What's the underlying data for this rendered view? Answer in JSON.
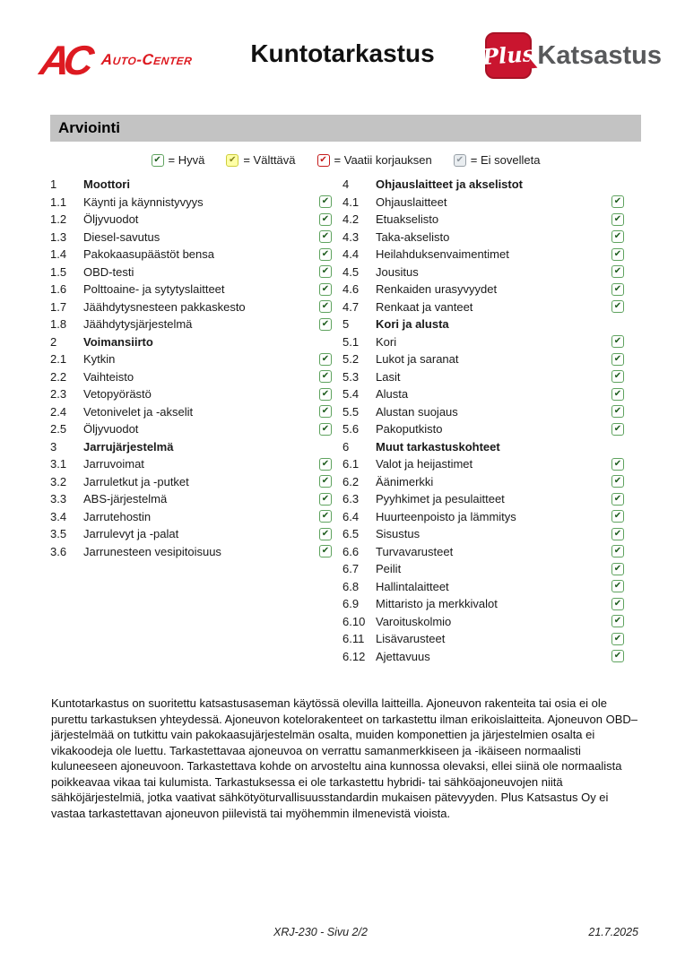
{
  "header": {
    "ac_logo": {
      "mark": "AC",
      "text": "Auto-Center"
    },
    "title": "Kuntotarkastus",
    "plus_logo": {
      "mark": "Plus",
      "text": "Katsastus"
    }
  },
  "section_title": "Arviointi",
  "icons": {
    "checkmark": "✔"
  },
  "colors": {
    "ac_red": "#dd1a21",
    "plus_red": "#c9152f",
    "katsastus_gray": "#58595b",
    "section_bar_gray": "#c3c3c3",
    "status_good_border": "#5fa35f",
    "status_fair_bg": "#ffffa6",
    "status_bad": "#c41c1c",
    "status_na": "#99a1a8"
  },
  "legend": [
    {
      "status": "good",
      "label": "= Hyvä"
    },
    {
      "status": "fair",
      "label": "= Välttävä"
    },
    {
      "status": "bad",
      "label": "= Vaatii korjauksen"
    },
    {
      "status": "na",
      "label": "= Ei sovelleta"
    }
  ],
  "checklist": {
    "left": [
      {
        "num": "1",
        "label": "Moottori",
        "section": true
      },
      {
        "num": "1.1",
        "label": "Käynti ja käynnistyvyys",
        "status": "good"
      },
      {
        "num": "1.2",
        "label": "Öljyvuodot",
        "status": "good"
      },
      {
        "num": "1.3",
        "label": "Diesel-savutus",
        "status": "good"
      },
      {
        "num": "1.4",
        "label": "Pakokaasupäästöt bensa",
        "status": "good"
      },
      {
        "num": "1.5",
        "label": "OBD-testi",
        "status": "good"
      },
      {
        "num": "1.6",
        "label": "Polttoaine- ja sytytyslaitteet",
        "status": "good"
      },
      {
        "num": "1.7",
        "label": "Jäähdytysnesteen pakkaskesto",
        "status": "good"
      },
      {
        "num": "1.8",
        "label": "Jäähdytysjärjestelmä",
        "status": "good"
      },
      {
        "num": "2",
        "label": "Voimansiirto",
        "section": true
      },
      {
        "num": "2.1",
        "label": "Kytkin",
        "status": "good"
      },
      {
        "num": "2.2",
        "label": "Vaihteisto",
        "status": "good"
      },
      {
        "num": "2.3",
        "label": "Vetopyörästö",
        "status": "good"
      },
      {
        "num": "2.4",
        "label": "Vetonivelet ja -akselit",
        "status": "good"
      },
      {
        "num": "2.5",
        "label": "Öljyvuodot",
        "status": "good"
      },
      {
        "num": "3",
        "label": "Jarrujärjestelmä",
        "section": true
      },
      {
        "num": "3.1",
        "label": "Jarruvoimat",
        "status": "good"
      },
      {
        "num": "3.2",
        "label": "Jarruletkut ja -putket",
        "status": "good"
      },
      {
        "num": "3.3",
        "label": "ABS-järjestelmä",
        "status": "good"
      },
      {
        "num": "3.4",
        "label": "Jarrutehostin",
        "status": "good"
      },
      {
        "num": "3.5",
        "label": "Jarrulevyt ja -palat",
        "status": "good"
      },
      {
        "num": "3.6",
        "label": "Jarrunesteen vesipitoisuus",
        "status": "good"
      }
    ],
    "right": [
      {
        "num": "4",
        "label": "Ohjauslaitteet ja akselistot",
        "section": true
      },
      {
        "num": "4.1",
        "label": "Ohjauslaitteet",
        "status": "good"
      },
      {
        "num": "4.2",
        "label": "Etuakselisto",
        "status": "good"
      },
      {
        "num": "4.3",
        "label": "Taka-akselisto",
        "status": "good"
      },
      {
        "num": "4.4",
        "label": "Heilahduksenvaimentimet",
        "status": "good"
      },
      {
        "num": "4.5",
        "label": "Jousitus",
        "status": "good"
      },
      {
        "num": "4.6",
        "label": "Renkaiden urasyvyydet",
        "status": "good"
      },
      {
        "num": "4.7",
        "label": "Renkaat ja vanteet",
        "status": "good"
      },
      {
        "num": "5",
        "label": "Kori ja alusta",
        "section": true
      },
      {
        "num": "5.1",
        "label": "Kori",
        "status": "good"
      },
      {
        "num": "5.2",
        "label": "Lukot ja saranat",
        "status": "good"
      },
      {
        "num": "5.3",
        "label": "Lasit",
        "status": "good"
      },
      {
        "num": "5.4",
        "label": "Alusta",
        "status": "good"
      },
      {
        "num": "5.5",
        "label": "Alustan suojaus",
        "status": "good"
      },
      {
        "num": "5.6",
        "label": "Pakoputkisto",
        "status": "good"
      },
      {
        "num": "6",
        "label": "Muut tarkastuskohteet",
        "section": true
      },
      {
        "num": "6.1",
        "label": "Valot ja heijastimet",
        "status": "good"
      },
      {
        "num": "6.2",
        "label": "Äänimerkki",
        "status": "good"
      },
      {
        "num": "6.3",
        "label": "Pyyhkimet ja pesulaitteet",
        "status": "good"
      },
      {
        "num": "6.4",
        "label": "Huurteenpoisto ja lämmitys",
        "status": "good"
      },
      {
        "num": "6.5",
        "label": "Sisustus",
        "status": "good"
      },
      {
        "num": "6.6",
        "label": "Turvavarusteet",
        "status": "good"
      },
      {
        "num": "6.7",
        "label": "Peilit",
        "status": "good"
      },
      {
        "num": "6.8",
        "label": "Hallintalaitteet",
        "status": "good"
      },
      {
        "num": "6.9",
        "label": "Mittaristo ja merkkivalot",
        "status": "good"
      },
      {
        "num": "6.10",
        "label": "Varoituskolmio",
        "status": "good"
      },
      {
        "num": "6.11",
        "label": "Lisävarusteet",
        "status": "good"
      },
      {
        "num": "6.12",
        "label": "Ajettavuus",
        "status": "good"
      }
    ]
  },
  "disclaimer": "Kuntotarkastus on suoritettu katsastusaseman käytössä olevilla laitteilla. Ajoneuvon rakenteita tai osia ei ole purettu tarkastuksen yhteydessä. Ajoneuvon kotelorakenteet on tarkastettu ilman erikoislaitteita. Ajoneuvon OBD–järjestelmää on tutkittu vain pakokaasujärjestelmän osalta, muiden komponettien ja järjestelmien osalta ei vikakoodeja ole luettu. Tarkastettavaa ajoneuvoa on verrattu samanmerkkiseen ja -ikäiseen normaalisti kuluneeseen ajoneuvoon. Tarkastettava kohde on arvosteltu aina kunnossa olevaksi, ellei siinä ole normaalista poikkeavaa vikaa tai kulumista. Tarkastuksessa ei ole tarkastettu hybridi- tai sähköajoneuvojen niitä sähköjärjestelmiä, jotka vaativat sähkötyöturvallisuusstandardin mukaisen pätevyyden. Plus Katsastus Oy ei vastaa tarkastettavan ajoneuvon piilevistä tai myöhemmin ilmenevistä vioista.",
  "footer": {
    "page_info": "XRJ-230 - Sivu 2/2",
    "date": "21.7.2025"
  }
}
